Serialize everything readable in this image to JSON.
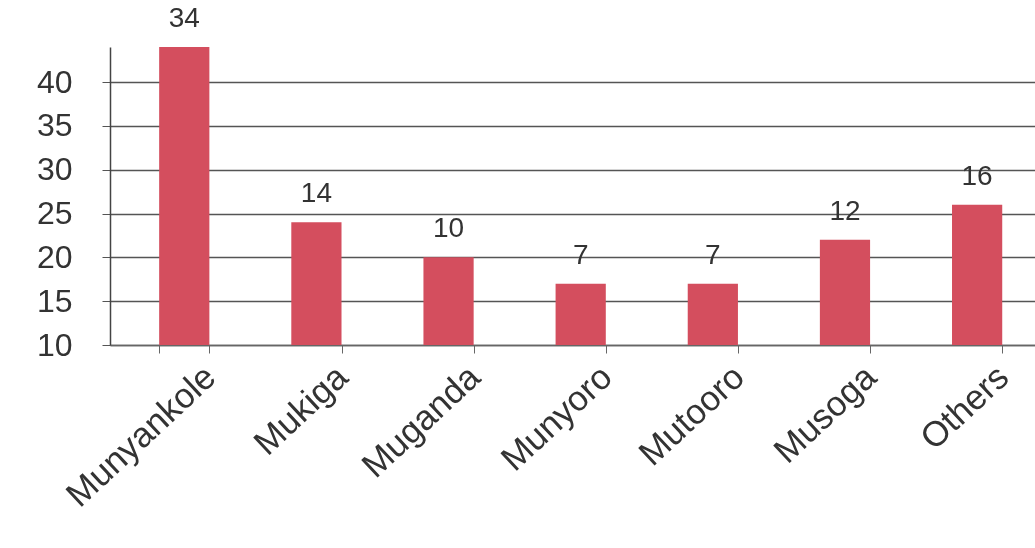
{
  "chart_data": {
    "type": "bar",
    "categories": [
      "Munyankole",
      "Mukiga",
      "Muganda",
      "Munyoro",
      "Mutooro",
      "Musoga",
      "Others"
    ],
    "values": [
      34,
      14,
      10,
      7,
      7,
      12,
      16
    ],
    "base": [
      10,
      10,
      10,
      10,
      10,
      10,
      10
    ],
    "color": "#d44e5e",
    "data_labels": true,
    "grid": "y",
    "ylim": [
      10,
      44
    ],
    "yticks": [
      10,
      15,
      20,
      25,
      30,
      35,
      40
    ]
  }
}
